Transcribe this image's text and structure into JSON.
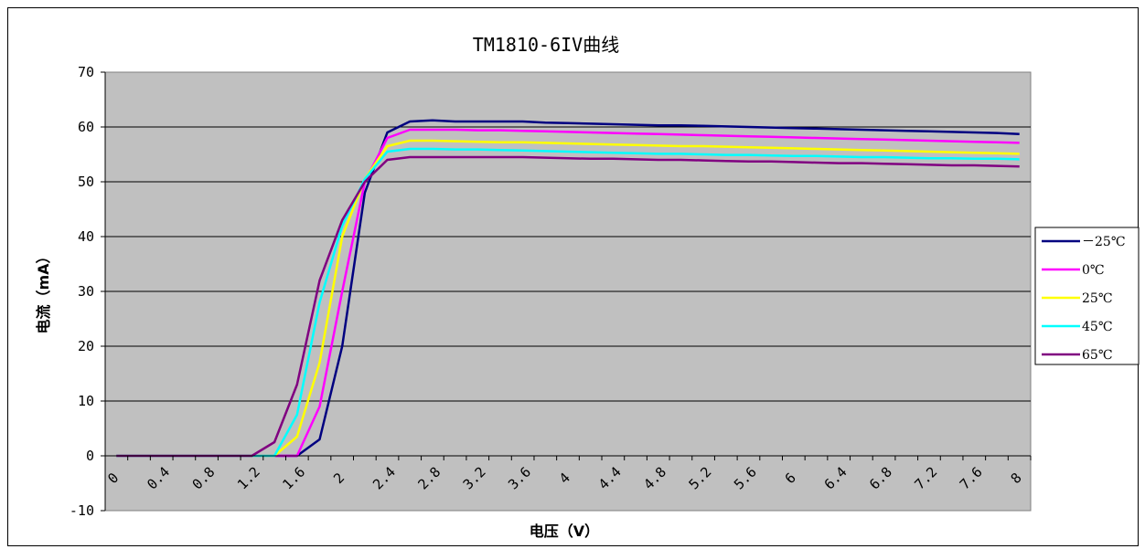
{
  "chart_data": {
    "type": "line",
    "title": "TM1810-6IV曲线",
    "xlabel": "电压（V）",
    "ylabel": "电流（mA）",
    "ylim": [
      -10,
      70
    ],
    "yticks": [
      -10,
      0,
      10,
      20,
      30,
      40,
      50,
      60,
      70
    ],
    "x": [
      0,
      0.2,
      0.4,
      0.6,
      0.8,
      1.0,
      1.2,
      1.4,
      1.6,
      1.8,
      2.0,
      2.2,
      2.4,
      2.6,
      2.8,
      3.0,
      3.2,
      3.4,
      3.6,
      3.8,
      4.0,
      4.2,
      4.4,
      4.6,
      4.8,
      5.0,
      5.2,
      5.4,
      5.6,
      5.8,
      6.0,
      6.2,
      6.4,
      6.6,
      6.8,
      7.0,
      7.2,
      7.4,
      7.6,
      7.8,
      8.0
    ],
    "xtick_labels": [
      "0",
      "0.4",
      "0.8",
      "1.2",
      "1.6",
      "2",
      "2.4",
      "2.8",
      "3.2",
      "3.6",
      "4",
      "4.4",
      "4.8",
      "5.2",
      "5.6",
      "6",
      "6.4",
      "6.8",
      "7.2",
      "7.6",
      "8"
    ],
    "grid": "horizontal",
    "background": "#c0c0c0",
    "legend_position": "right",
    "series": [
      {
        "name": "－25℃",
        "color": "#000080",
        "values": [
          0,
          0,
          0,
          0,
          0,
          0,
          0,
          0,
          0,
          3,
          20,
          48,
          59,
          61,
          61.2,
          61,
          61,
          61,
          61,
          60.8,
          60.7,
          60.6,
          60.5,
          60.4,
          60.3,
          60.3,
          60.2,
          60.1,
          60,
          59.9,
          59.8,
          59.7,
          59.6,
          59.5,
          59.4,
          59.3,
          59.2,
          59.1,
          59,
          58.9,
          58.7
        ]
      },
      {
        "name": "0℃",
        "color": "#ff00ff",
        "values": [
          0,
          0,
          0,
          0,
          0,
          0,
          0,
          0,
          0,
          9,
          30,
          50,
          58,
          59.5,
          59.5,
          59.5,
          59.4,
          59.4,
          59.3,
          59.2,
          59.1,
          59,
          58.9,
          58.8,
          58.7,
          58.6,
          58.5,
          58.4,
          58.3,
          58.2,
          58.1,
          58,
          57.9,
          57.8,
          57.7,
          57.6,
          57.5,
          57.4,
          57.3,
          57.2,
          57.1
        ]
      },
      {
        "name": "25℃",
        "color": "#ffff00",
        "values": [
          0,
          0,
          0,
          0,
          0,
          0,
          0,
          0,
          3.5,
          17,
          40,
          50.5,
          56.5,
          57.5,
          57.5,
          57.4,
          57.3,
          57.2,
          57.2,
          57.1,
          57,
          56.9,
          56.8,
          56.7,
          56.6,
          56.5,
          56.5,
          56.4,
          56.3,
          56.2,
          56.1,
          56,
          55.9,
          55.8,
          55.7,
          55.6,
          55.5,
          55.4,
          55.3,
          55.2,
          55.1
        ]
      },
      {
        "name": "45℃",
        "color": "#00ffff",
        "values": [
          0,
          0,
          0,
          0,
          0,
          0,
          0,
          0,
          7.5,
          28,
          42,
          50.5,
          55.5,
          56,
          56,
          55.9,
          55.9,
          55.8,
          55.7,
          55.6,
          55.5,
          55.4,
          55.3,
          55.2,
          55.1,
          55.1,
          55,
          54.9,
          54.9,
          54.8,
          54.7,
          54.7,
          54.6,
          54.5,
          54.5,
          54.4,
          54.3,
          54.3,
          54.2,
          54.2,
          54.1
        ]
      },
      {
        "name": "65℃",
        "color": "#800080",
        "values": [
          0,
          0,
          0,
          0,
          0,
          0,
          0,
          2.5,
          13,
          32,
          43,
          50,
          54,
          54.5,
          54.5,
          54.5,
          54.5,
          54.5,
          54.5,
          54.4,
          54.3,
          54.2,
          54.2,
          54.1,
          54,
          54,
          53.9,
          53.8,
          53.7,
          53.7,
          53.6,
          53.5,
          53.4,
          53.4,
          53.3,
          53.2,
          53.1,
          53,
          53,
          52.9,
          52.8
        ]
      }
    ]
  }
}
